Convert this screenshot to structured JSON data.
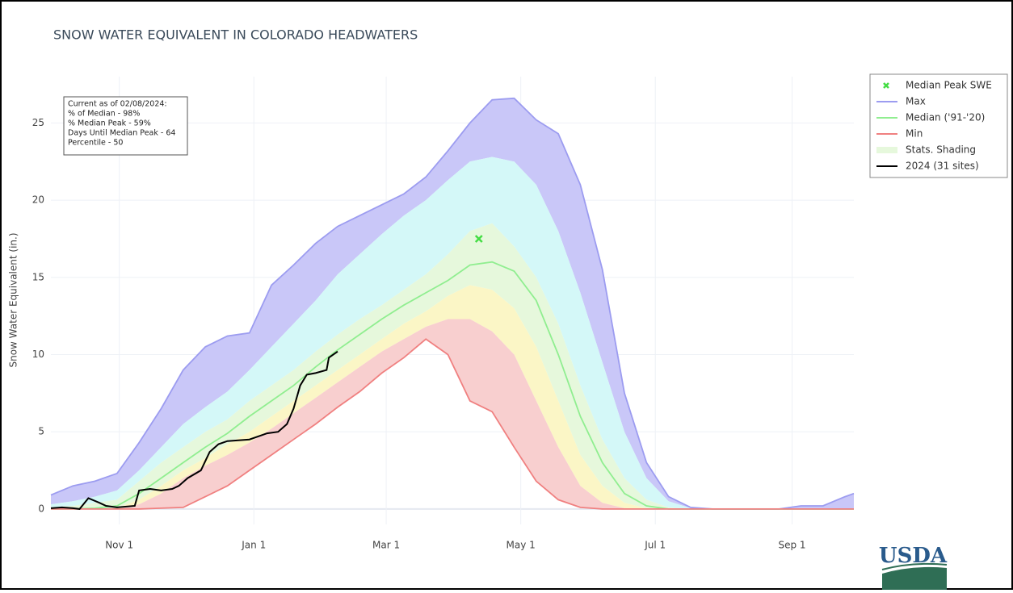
{
  "chart_data": {
    "type": "area_line",
    "title": "SNOW WATER EQUIVALENT IN COLORADO HEADWATERS",
    "y_label": "Snow Water Equivalent (in.)",
    "annotation": [
      "Current as of 02/08/2024:",
      "% of Median - 98%",
      "% Median Peak - 59%",
      "Days Until Median Peak - 64",
      "Percentile - 50"
    ],
    "logo": "USDA",
    "x": [
      0,
      10,
      20,
      30,
      40,
      50,
      60,
      70,
      80,
      90,
      100,
      110,
      120,
      130,
      140,
      150,
      160,
      170,
      180,
      190,
      200,
      210,
      220,
      230,
      240,
      250,
      260,
      270,
      280,
      290,
      300,
      310,
      320,
      330,
      340,
      350,
      360,
      364
    ],
    "xlim": [
      0,
      364
    ],
    "xticks": [
      {
        "value": 31,
        "label": "Nov 1"
      },
      {
        "value": 92,
        "label": "Jan 1"
      },
      {
        "value": 152,
        "label": "Mar 1"
      },
      {
        "value": 213,
        "label": "May 1"
      },
      {
        "value": 274,
        "label": "Jul 1"
      },
      {
        "value": 336,
        "label": "Sep 1"
      }
    ],
    "ylim": [
      -1,
      28
    ],
    "yticks": [
      0,
      5,
      10,
      15,
      20,
      25
    ],
    "grid": true,
    "legend": "right",
    "median_peak": {
      "name": "Median Peak SWE",
      "color": "#44dd44",
      "x": 194,
      "value": 17.5
    },
    "series": [
      {
        "name": "Max",
        "color": "#9c9cf0",
        "values": [
          0.9,
          1.5,
          1.8,
          2.3,
          4.3,
          6.5,
          9.0,
          10.5,
          11.2,
          11.4,
          14.5,
          15.8,
          17.2,
          18.3,
          19.0,
          19.7,
          20.4,
          21.5,
          23.2,
          25.0,
          26.5,
          26.6,
          25.2,
          24.3,
          21.0,
          15.5,
          7.5,
          3.0,
          0.8,
          0.1,
          0,
          0,
          0,
          0,
          0.2,
          0.2,
          0.8,
          1.0
        ]
      },
      {
        "name": "Median ('91-'20)",
        "color": "#90ee90",
        "values": [
          0,
          0,
          0.05,
          0.2,
          1.0,
          2.0,
          3.0,
          4.0,
          4.9,
          6.0,
          7.0,
          8.0,
          9.2,
          10.3,
          11.3,
          12.3,
          13.2,
          14.0,
          14.8,
          15.8,
          16.0,
          15.4,
          13.5,
          10.0,
          6.0,
          3.0,
          1.0,
          0.2,
          0,
          0,
          0,
          0,
          0,
          0,
          0,
          0,
          0,
          0
        ]
      },
      {
        "name": "Min",
        "color": "#f08080",
        "values": [
          0,
          0,
          0,
          0,
          0,
          0.05,
          0.1,
          0.8,
          1.5,
          2.5,
          3.5,
          4.5,
          5.5,
          6.6,
          7.6,
          8.8,
          9.8,
          11.0,
          10.0,
          7.0,
          6.3,
          4.0,
          1.8,
          0.6,
          0.1,
          0,
          0,
          0,
          0,
          0,
          0,
          0,
          0,
          0,
          0,
          0,
          0,
          0
        ]
      },
      {
        "name": "2024 (31 sites)",
        "color": "#000000",
        "x": [
          0,
          5,
          10,
          13,
          17,
          22,
          25,
          30,
          38,
          40,
          45,
          50,
          55,
          58,
          62,
          68,
          72,
          76,
          80,
          90,
          98,
          103,
          107,
          110,
          113,
          116,
          120,
          125,
          126,
          130
        ],
        "values": [
          0.05,
          0.1,
          0.05,
          0,
          0.7,
          0.4,
          0.2,
          0.1,
          0.2,
          1.2,
          1.3,
          1.2,
          1.3,
          1.5,
          2.0,
          2.5,
          3.7,
          4.2,
          4.4,
          4.5,
          4.9,
          5.0,
          5.5,
          6.5,
          8.0,
          8.7,
          8.8,
          9.0,
          9.8,
          10.2
        ]
      }
    ],
    "stats_shading": {
      "name": "Stats. Shading",
      "colors": [
        "#c9c7f8",
        "#d4f8f8",
        "#e6f8dc",
        "#fbf6c6",
        "#f8cfcf"
      ],
      "bounds": [
        [
          0.3,
          0.5,
          0.8,
          1.2,
          2.5,
          4.0,
          5.5,
          6.6,
          7.6,
          9.0,
          10.5,
          12.0,
          13.5,
          15.2,
          16.5,
          17.8,
          19.0,
          20.0,
          21.3,
          22.5,
          22.8,
          22.5,
          21.0,
          18.0,
          14.0,
          9.5,
          5.0,
          2.0,
          0.5,
          0.05,
          0,
          0,
          0,
          0,
          0,
          0,
          0,
          0
        ],
        [
          0.1,
          0.2,
          0.4,
          0.6,
          1.8,
          3.0,
          4.0,
          5.0,
          5.8,
          7.0,
          8.0,
          9.0,
          10.2,
          11.3,
          12.3,
          13.2,
          14.2,
          15.2,
          16.5,
          18.0,
          18.5,
          17.0,
          15.0,
          12.0,
          8.0,
          4.5,
          2.0,
          0.6,
          0.1,
          0,
          0,
          0,
          0,
          0,
          0,
          0,
          0,
          0
        ],
        [
          0,
          0,
          0,
          0.05,
          0.6,
          1.5,
          2.5,
          3.3,
          4.2,
          5.0,
          6.0,
          7.0,
          8.0,
          9.0,
          10.0,
          11.0,
          12.0,
          12.8,
          13.8,
          14.5,
          14.2,
          13.0,
          10.5,
          7.0,
          3.5,
          1.5,
          0.4,
          0.05,
          0,
          0,
          0,
          0,
          0,
          0,
          0,
          0,
          0,
          0
        ],
        [
          0,
          0,
          0,
          0,
          0.3,
          1.0,
          2.0,
          2.8,
          3.5,
          4.3,
          5.2,
          6.2,
          7.2,
          8.2,
          9.2,
          10.2,
          11.0,
          11.8,
          12.3,
          12.3,
          11.5,
          10.0,
          7.0,
          4.0,
          1.5,
          0.4,
          0.05,
          0,
          0,
          0,
          0,
          0,
          0,
          0,
          0,
          0,
          0,
          0
        ]
      ]
    }
  }
}
